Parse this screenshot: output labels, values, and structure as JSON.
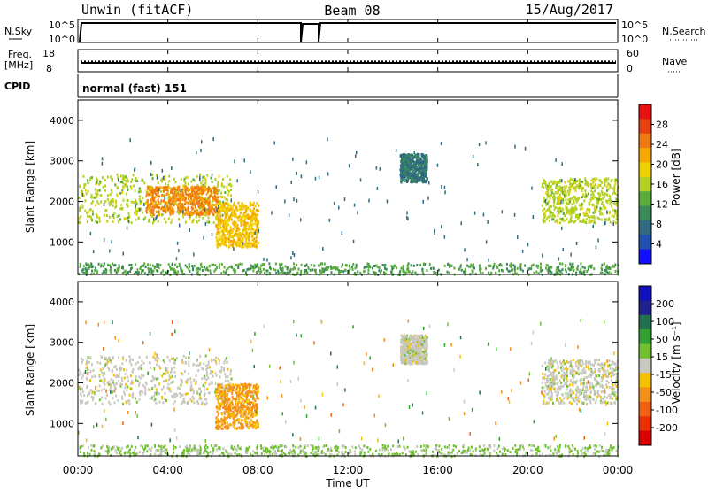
{
  "header": {
    "station": "Unwin (fitACF)",
    "beam": "Beam 08",
    "date": "15/Aug/2017"
  },
  "strips": {
    "nsky_label": "N.Sky",
    "nsky_ticks": [
      "10^5",
      "10^0"
    ],
    "nsearch_label": "N.Search",
    "nsearch_ticks": [
      "10^5",
      "10^0"
    ],
    "freq_label": "Freq.",
    "freq_unit": "[MHz]",
    "freq_ticks": [
      "18",
      "8"
    ],
    "nave_label": "Nave",
    "nave_ticks": [
      "60",
      "0"
    ],
    "cpid_label": "CPID",
    "cpid_text": "normal (fast) 151",
    "freq_value_mhz": 12.0,
    "nave_value": 28
  },
  "chart_data": [
    {
      "type": "heatmap",
      "name": "power",
      "ylabel": "Slant Range [km]",
      "xlabel": "",
      "ylim": [
        200,
        4500
      ],
      "xlim_hours": [
        0,
        24
      ],
      "yticks": [
        1000,
        2000,
        3000,
        4000
      ],
      "colorbar": {
        "label": "Power [dB]",
        "ticks": [
          "28",
          "24",
          "20",
          "16",
          "12",
          "8",
          "4"
        ],
        "range": [
          0,
          32
        ],
        "colors": [
          "#1010ff",
          "#2050b0",
          "#306a80",
          "#3a8a5a",
          "#5aac3a",
          "#b4d020",
          "#f0d000",
          "#f5a800",
          "#f07a10",
          "#e84010",
          "#e81010"
        ]
      },
      "regions": [
        {
          "t": [
            0.0,
            6.8
          ],
          "r": [
            1500,
            2700
          ],
          "level": 16
        },
        {
          "t": [
            3.0,
            6.2
          ],
          "r": [
            1700,
            2400
          ],
          "level": 24
        },
        {
          "t": [
            6.1,
            8.0
          ],
          "r": [
            900,
            2000
          ],
          "level": 20
        },
        {
          "t": [
            14.3,
            15.5
          ],
          "r": [
            2500,
            3200
          ],
          "level": 8
        },
        {
          "t": [
            20.6,
            24.0
          ],
          "r": [
            1500,
            2600
          ],
          "level": 16
        },
        {
          "t": [
            0.0,
            24.0
          ],
          "r": [
            220,
            500
          ],
          "level": 12
        }
      ]
    },
    {
      "type": "heatmap",
      "name": "velocity",
      "ylabel": "Slant Range [km]",
      "xlabel": "Time UT",
      "ylim": [
        200,
        4500
      ],
      "xlim_hours": [
        0,
        24
      ],
      "yticks": [
        1000,
        2000,
        3000,
        4000
      ],
      "xticks": [
        "00:00",
        "04:00",
        "08:00",
        "12:00",
        "16:00",
        "20:00",
        "00:00"
      ],
      "colorbar": {
        "label": "Velocity [m s⁻¹]",
        "ticks": [
          "200",
          "100",
          "50",
          "15",
          "-15",
          "-50",
          "-100",
          "-200"
        ],
        "range": [
          -250,
          250
        ],
        "colors": [
          "#d80000",
          "#e83000",
          "#f06010",
          "#f49018",
          "#f5c000",
          "#c8c8c0",
          "#70c030",
          "#30a030",
          "#207050",
          "#202090",
          "#1010c0"
        ]
      },
      "regions": [
        {
          "t": [
            0.0,
            6.8
          ],
          "r": [
            1500,
            2700
          ],
          "level": 0
        },
        {
          "t": [
            6.1,
            8.0
          ],
          "r": [
            900,
            2000
          ],
          "level": -80
        },
        {
          "t": [
            14.3,
            15.5
          ],
          "r": [
            2500,
            3200
          ],
          "level": 0
        },
        {
          "t": [
            20.6,
            24.0
          ],
          "r": [
            1500,
            2600
          ],
          "level": 0
        },
        {
          "t": [
            0.0,
            24.0
          ],
          "r": [
            220,
            500
          ],
          "level": 30
        }
      ]
    }
  ]
}
